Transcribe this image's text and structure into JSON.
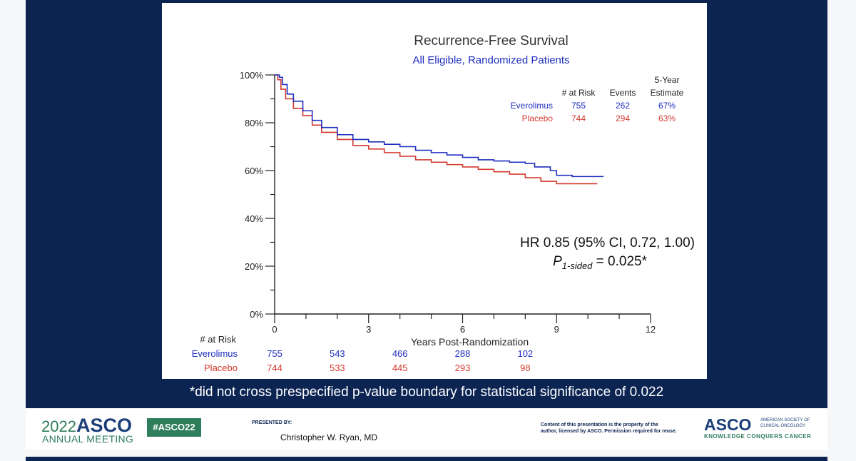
{
  "chart_data": {
    "type": "line",
    "title": "Recurrence-Free Survival",
    "subtitle": "All Eligible, Randomized Patients",
    "xlabel": "Years Post-Randomization",
    "ylabel": "",
    "xlim": [
      0,
      12
    ],
    "ylim": [
      0,
      100
    ],
    "x_ticks": [
      "0",
      "3",
      "6",
      "9",
      "12"
    ],
    "y_ticks": [
      "0%",
      "20%",
      "40%",
      "60%",
      "80%",
      "100%"
    ],
    "series": [
      {
        "name": "Everolimus",
        "color": "#1f2fbf",
        "at_risk": "755",
        "events": "262",
        "estimate": "67%",
        "points": [
          [
            0,
            100
          ],
          [
            0.15,
            99
          ],
          [
            0.25,
            96
          ],
          [
            0.4,
            92
          ],
          [
            0.6,
            89
          ],
          [
            0.9,
            85
          ],
          [
            1.2,
            81
          ],
          [
            1.5,
            78
          ],
          [
            2,
            75
          ],
          [
            2.5,
            73
          ],
          [
            3,
            72
          ],
          [
            3.5,
            71
          ],
          [
            4,
            70
          ],
          [
            4.5,
            68.5
          ],
          [
            5,
            67.5
          ],
          [
            5.5,
            66.5
          ],
          [
            6,
            65.5
          ],
          [
            6.5,
            64.5
          ],
          [
            7,
            64
          ],
          [
            7.5,
            63.5
          ],
          [
            8,
            63
          ],
          [
            8.3,
            61.5
          ],
          [
            8.8,
            60
          ],
          [
            9,
            58
          ],
          [
            9.5,
            57.5
          ],
          [
            10,
            57.5
          ],
          [
            10.5,
            57.5
          ]
        ]
      },
      {
        "name": "Placebo",
        "color": "#d23a2f",
        "at_risk": "744",
        "events": "294",
        "estimate": "63%",
        "points": [
          [
            0,
            100
          ],
          [
            0.1,
            98
          ],
          [
            0.2,
            94
          ],
          [
            0.35,
            90
          ],
          [
            0.6,
            86
          ],
          [
            0.9,
            83
          ],
          [
            1.2,
            79
          ],
          [
            1.5,
            76
          ],
          [
            2,
            73
          ],
          [
            2.5,
            70.5
          ],
          [
            3,
            69
          ],
          [
            3.5,
            67.5
          ],
          [
            4,
            66
          ],
          [
            4.5,
            64.5
          ],
          [
            5,
            63.5
          ],
          [
            5.5,
            62.5
          ],
          [
            6,
            61.5
          ],
          [
            6.5,
            60.5
          ],
          [
            7,
            59.5
          ],
          [
            7.5,
            58.5
          ],
          [
            8,
            57
          ],
          [
            8.5,
            55.5
          ],
          [
            9,
            54.5
          ],
          [
            9.5,
            54.5
          ],
          [
            10,
            54.5
          ],
          [
            10.3,
            54.5
          ]
        ]
      }
    ],
    "legend_headers": {
      "at_risk": "# at Risk",
      "events": "Events",
      "estimate_line1": "5-Year",
      "estimate_line2": "Estimate"
    },
    "annotation": {
      "hr": "HR 0.85 (95% CI, 0.72, 1.00)",
      "p_symbol": "P",
      "p_subscript": "1-sided",
      "p_value": " = 0.025*"
    },
    "risk_table": {
      "header": "# at Risk",
      "x": [
        0,
        2,
        4,
        6,
        8
      ],
      "rows": [
        {
          "label": "Everolimus",
          "color": "#1f2fbf",
          "values": [
            "755",
            "543",
            "466",
            "288",
            "102"
          ]
        },
        {
          "label": "Placebo",
          "color": "#d23a2f",
          "values": [
            "744",
            "533",
            "445",
            "293",
            "98"
          ]
        }
      ]
    }
  },
  "footnote": "*did not cross prespecified p-value boundary for statistical significance of 0.022",
  "footer": {
    "meeting_year": "2022",
    "meeting_org": "ASCO",
    "meeting_name": "ANNUAL MEETING",
    "hashtag": "#ASCO22",
    "presented_by_label": "PRESENTED BY:",
    "presenter": "Christopher W. Ryan, MD",
    "disclaimer_line1": "Content of this presentation is the property of the",
    "disclaimer_line2": "author, licensed by ASCO. Permission required for reuse.",
    "asco_logo": "ASCO",
    "asco_full_line1": "AMERICAN SOCIETY OF",
    "asco_full_line2": "CLINICAL ONCOLOGY",
    "tagline": "KNOWLEDGE CONQUERS CANCER"
  },
  "colors": {
    "navy": "#0c2452",
    "green": "#2e7d5b",
    "asco_blue": "#1c3f7a"
  }
}
